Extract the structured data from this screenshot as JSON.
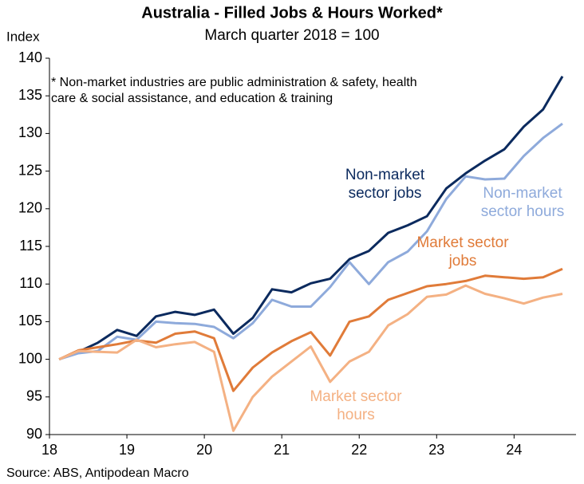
{
  "chart_data": {
    "type": "line",
    "title": "Australia - Filled Jobs & Hours Worked*",
    "subtitle": "March quarter 2018 = 100",
    "y_label": "Index",
    "note": "* Non-market industries are public administration & safety, health care & social assistance, and education & training",
    "source": "Source: ABS, Antipodean Macro",
    "x": [
      18.125,
      18.375,
      18.625,
      18.875,
      19.125,
      19.375,
      19.625,
      19.875,
      20.125,
      20.375,
      20.625,
      20.875,
      21.125,
      21.375,
      21.625,
      21.875,
      22.125,
      22.375,
      22.625,
      22.875,
      23.125,
      23.375,
      23.625,
      23.875,
      24.125,
      24.375,
      24.625
    ],
    "series": [
      {
        "name": "Non-market sector jobs",
        "color": "#0b2a5e",
        "values": [
          100,
          101,
          102.2,
          103.9,
          103.1,
          105.7,
          106.3,
          105.9,
          106.6,
          103.4,
          105.5,
          109.3,
          108.9,
          110.1,
          110.7,
          113.3,
          114.4,
          116.8,
          117.8,
          119,
          122.7,
          124.7,
          126.4,
          127.9,
          130.9,
          133.2,
          137.6
        ]
      },
      {
        "name": "Non-market sector hours",
        "color": "#8eaadb",
        "values": [
          100,
          100.8,
          101.1,
          103,
          102.6,
          105,
          104.8,
          104.7,
          104.3,
          102.8,
          104.8,
          107.9,
          107,
          107,
          109.6,
          112.9,
          110,
          112.9,
          114.3,
          117,
          121.3,
          124.3,
          123.9,
          124,
          127,
          129.4,
          131.3
        ]
      },
      {
        "name": "Market sector jobs",
        "color": "#e07b39",
        "values": [
          100,
          101.2,
          101.6,
          102,
          102.5,
          102.2,
          103.4,
          103.7,
          102.8,
          95.8,
          98.9,
          100.9,
          102.4,
          103.6,
          100.5,
          105,
          105.7,
          107.9,
          108.8,
          109.7,
          110,
          110.4,
          111.1,
          110.9,
          110.7,
          110.9,
          112
        ]
      },
      {
        "name": "Market sector hours",
        "color": "#f4b183",
        "values": [
          100,
          101.1,
          101,
          100.9,
          102.6,
          101.6,
          102,
          102.3,
          101,
          90.5,
          95,
          97.7,
          99.7,
          101.7,
          97,
          99.7,
          101,
          104.5,
          106,
          108.3,
          108.6,
          109.8,
          108.7,
          108.1,
          107.4,
          108.2,
          108.7
        ]
      }
    ],
    "xlim": [
      18,
      24.8
    ],
    "xticks": [
      18,
      19,
      20,
      21,
      22,
      23,
      24
    ],
    "ylim": [
      90,
      140
    ],
    "yticks": [
      90,
      95,
      100,
      105,
      110,
      115,
      120,
      125,
      130,
      135,
      140
    ],
    "grid": false
  }
}
